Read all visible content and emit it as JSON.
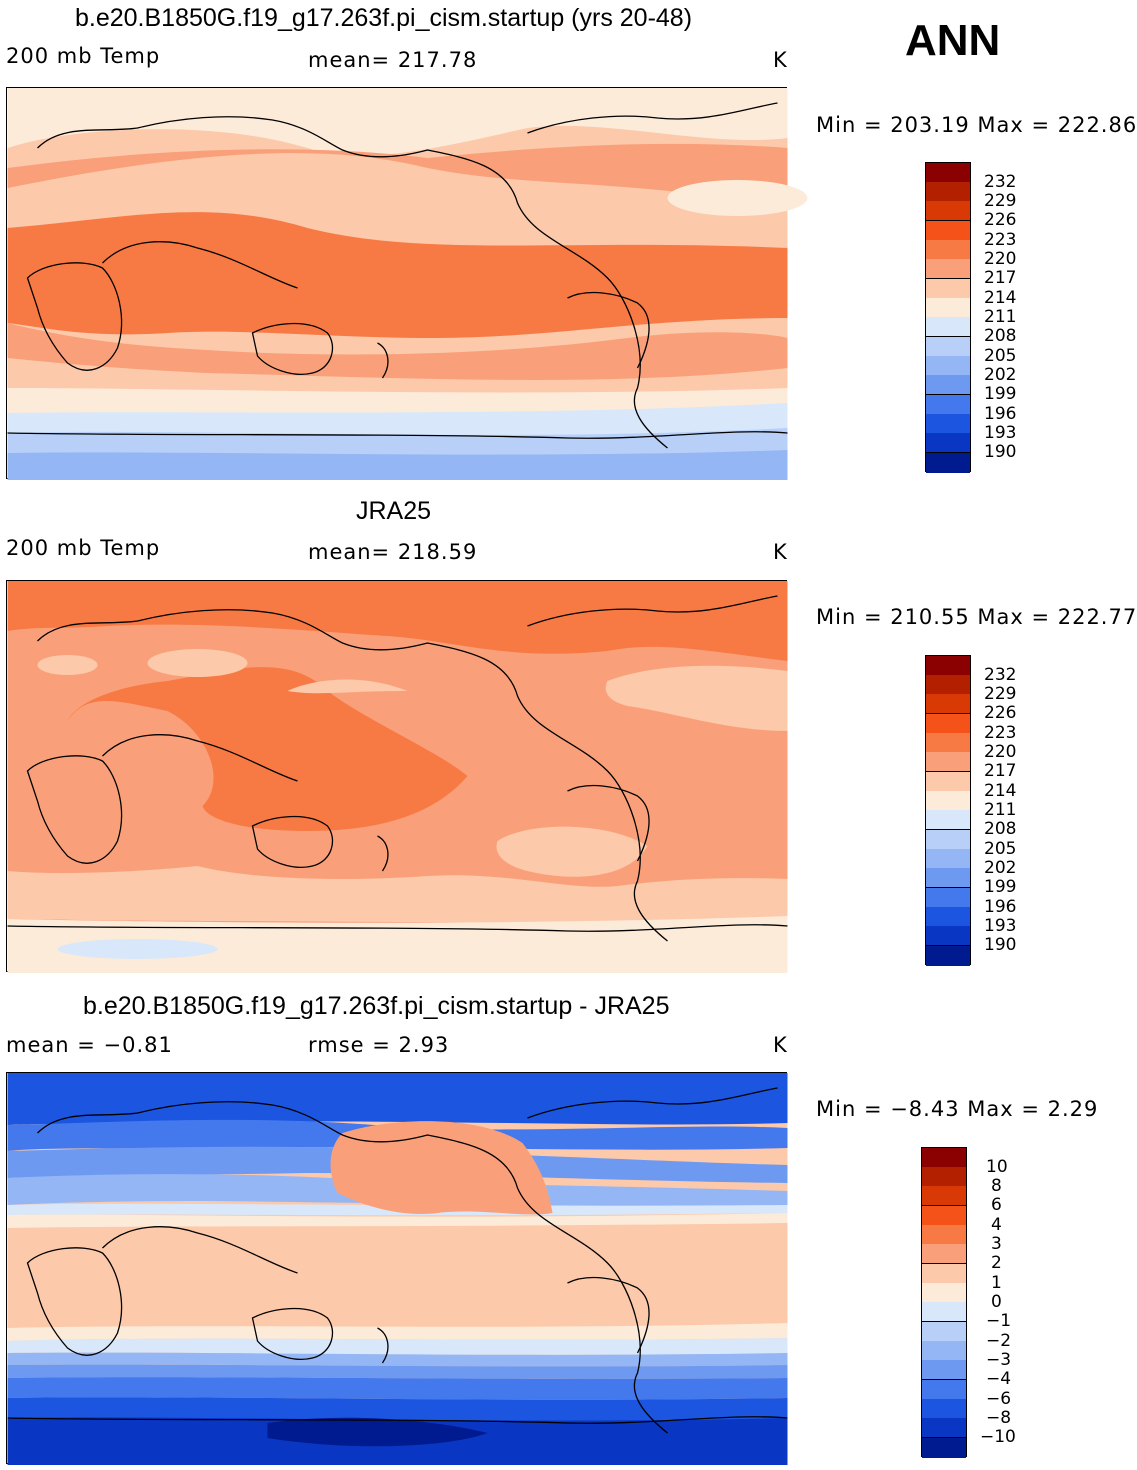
{
  "season": "ANN",
  "panels": [
    {
      "id": "model",
      "title": "b.e20.B1850G.f19_g17.263f.pi_cism.startup (yrs 20-48)",
      "left_label": "200 mb Temp",
      "center_label": "mean=  217.78",
      "units": "K",
      "minmax": "Min  =  203.19  Max  =  222.86",
      "colorbar_labels": [
        "232",
        "229",
        "226",
        "223",
        "220",
        "217",
        "214",
        "211",
        "208",
        "205",
        "202",
        "199",
        "196",
        "193",
        "190"
      ]
    },
    {
      "id": "obs",
      "title": "JRA25",
      "left_label": "200 mb Temp",
      "center_label": "mean=  218.59",
      "units": "K",
      "minmax": "Min  =  210.55  Max  =  222.77",
      "colorbar_labels": [
        "232",
        "229",
        "226",
        "223",
        "220",
        "217",
        "214",
        "211",
        "208",
        "205",
        "202",
        "199",
        "196",
        "193",
        "190"
      ]
    },
    {
      "id": "diff",
      "title": "b.e20.B1850G.f19_g17.263f.pi_cism.startup - JRA25",
      "left_label": "mean =    −0.81",
      "center_label": "rmse  =      2.93",
      "units": "K",
      "minmax": "Min  =    −8.43  Max  =      2.29",
      "colorbar_labels": [
        "10",
        "8",
        "6",
        "4",
        "3",
        "2",
        "1",
        "0",
        "−1",
        "−2",
        "−3",
        "−4",
        "−6",
        "−8",
        "−10"
      ]
    }
  ],
  "colors": {
    "scale": [
      "#8B0000",
      "#B22000",
      "#D93A05",
      "#F5521A",
      "#F77A45",
      "#F9A07A",
      "#FCC9AA",
      "#FDEBDA",
      "#D8E8FA",
      "#B8D0F8",
      "#94B6F5",
      "#6E99F0",
      "#4479EE",
      "#1B55E0",
      "#0A36C4",
      "#001A8F"
    ]
  }
}
